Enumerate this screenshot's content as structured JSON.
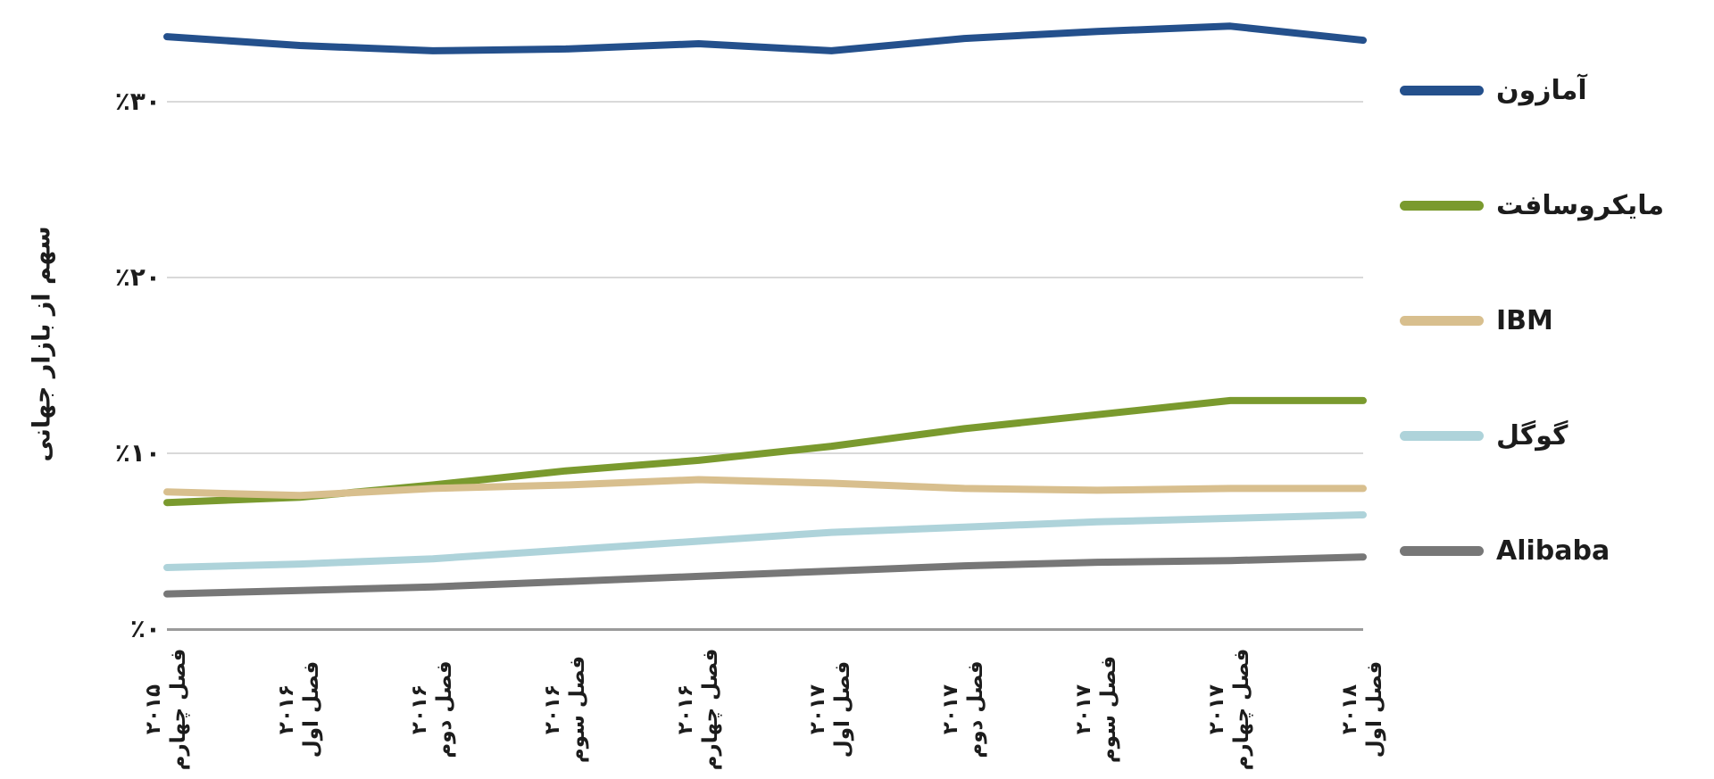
{
  "page": {
    "background": "#ffffff",
    "text_color": "#1c1c1c",
    "grid_color": "#d9d9d9",
    "axis_color": "#9a9a9a"
  },
  "chart_data": {
    "type": "line",
    "title": "",
    "xlabel": "",
    "ylabel": "سهم از بازار جهانی",
    "ylim": [
      0,
      35
    ],
    "grid": true,
    "legend_position": "right",
    "yticks": [
      {
        "value": 0,
        "label": "٪۰"
      },
      {
        "value": 10,
        "label": "٪۱۰"
      },
      {
        "value": 20,
        "label": "٪۲۰"
      },
      {
        "value": 30,
        "label": "٪۳۰"
      }
    ],
    "categories": [
      {
        "quarter": "فصل چهارم",
        "year": "۲۰۱۵"
      },
      {
        "quarter": "فصل اول",
        "year": "۲۰۱۶"
      },
      {
        "quarter": "فصل دوم",
        "year": "۲۰۱۶"
      },
      {
        "quarter": "فصل سوم",
        "year": "۲۰۱۶"
      },
      {
        "quarter": "فصل چهارم",
        "year": "۲۰۱۶"
      },
      {
        "quarter": "فصل اول",
        "year": "۲۰۱۷"
      },
      {
        "quarter": "فصل دوم",
        "year": "۲۰۱۷"
      },
      {
        "quarter": "فصل سوم",
        "year": "۲۰۱۷"
      },
      {
        "quarter": "فصل چهارم",
        "year": "۲۰۱۷"
      },
      {
        "quarter": "فصل اول",
        "year": "۲۰۱۸"
      }
    ],
    "series": [
      {
        "key": "amazon",
        "name": "آمازون",
        "color": "#24508c",
        "values": [
          33.7,
          33.2,
          32.9,
          33.0,
          33.3,
          32.9,
          33.6,
          34.0,
          34.3,
          33.5
        ]
      },
      {
        "key": "microsoft",
        "name": "مایکروسافت",
        "color": "#7a9a2e",
        "values": [
          7.2,
          7.5,
          8.2,
          9.0,
          9.6,
          10.4,
          11.4,
          12.2,
          13.0,
          13.0
        ]
      },
      {
        "key": "ibm",
        "name": "IBM",
        "color": "#d8bf8e",
        "values": [
          7.8,
          7.6,
          8.0,
          8.2,
          8.5,
          8.3,
          8.0,
          7.9,
          8.0,
          8.0
        ]
      },
      {
        "key": "google",
        "name": "گوگل",
        "color": "#aed3da",
        "values": [
          3.5,
          3.7,
          4.0,
          4.5,
          5.0,
          5.5,
          5.8,
          6.1,
          6.3,
          6.5
        ]
      },
      {
        "key": "alibaba",
        "name": "Alibaba",
        "color": "#777777",
        "values": [
          2.0,
          2.2,
          2.4,
          2.7,
          3.0,
          3.3,
          3.6,
          3.8,
          3.9,
          4.1
        ]
      }
    ]
  }
}
